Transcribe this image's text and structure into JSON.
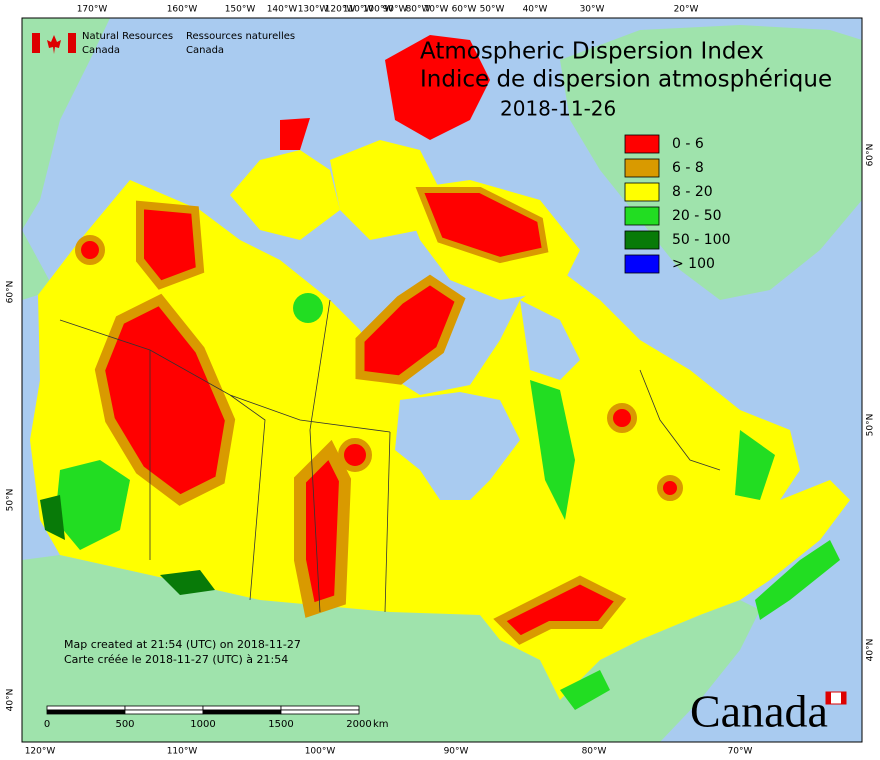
{
  "header": {
    "agency_en": "Natural Resources",
    "agency_en_2": "Canada",
    "agency_fr": "Ressources naturelles",
    "agency_fr_2": "Canada"
  },
  "title": [
    "Atmospheric Dispersion Index",
    "Indice de dispersion atmosphérique"
  ],
  "date": "2018-11-26",
  "legend": [
    {
      "label": "0 - 6",
      "color": "#ff0000"
    },
    {
      "label": "6 - 8",
      "color": "#d99a00"
    },
    {
      "label": "8 - 20",
      "color": "#ffff00"
    },
    {
      "label": "20 - 50",
      "color": "#22dd22"
    },
    {
      "label": "50 - 100",
      "color": "#087a08"
    },
    {
      "label": "> 100",
      "color": "#0000ff"
    }
  ],
  "top_longitudes": [
    "170°W",
    "160°W",
    "150°W",
    "140°W",
    "130°W",
    "120°W",
    "110°W",
    "100°W",
    "90°W",
    "80°W",
    "70°W",
    "60°W",
    "50°W",
    "40°W",
    "30°W",
    "20°W"
  ],
  "bottom_longitudes": [
    "120°W",
    "110°W",
    "100°W",
    "90°W",
    "80°W",
    "70°W"
  ],
  "left_latitudes": [
    "60°N",
    "50°N",
    "40°N"
  ],
  "right_latitudes": [
    "60°N",
    "50°N",
    "40°N"
  ],
  "credits": [
    "Map created at 21:54 (UTC) on 2018-11-27",
    "Carte créée le 2018-11-27 (UTC) à 21:54"
  ],
  "scale_bar": {
    "labels": [
      "0",
      "500",
      "1000",
      "1500",
      "2000"
    ],
    "unit": "km"
  },
  "wordmark": "Canada"
}
